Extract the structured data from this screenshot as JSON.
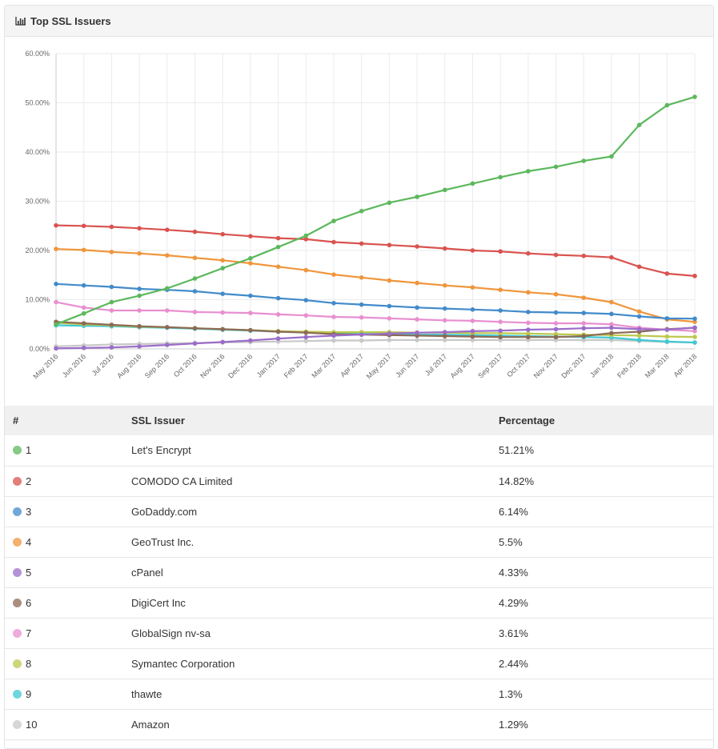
{
  "panel": {
    "title": "Top SSL Issuers",
    "icon": "bar-chart-icon"
  },
  "table": {
    "headers": {
      "rank": "#",
      "issuer": "SSL Issuer",
      "percentage": "Percentage"
    },
    "rows": [
      {
        "rank": "1",
        "issuer": "Let's Encrypt",
        "percentage": "51.21%",
        "color": "#5cb85c",
        "link": false
      },
      {
        "rank": "2",
        "issuer": "COMODO CA Limited",
        "percentage": "14.82%",
        "color": "#d9534f",
        "link": false
      },
      {
        "rank": "3",
        "issuer": "GoDaddy.com",
        "percentage": "6.14%",
        "color": "#428bca",
        "link": true
      },
      {
        "rank": "4",
        "issuer": "GeoTrust Inc.",
        "percentage": "5.5%",
        "color": "#f0953b",
        "link": false
      },
      {
        "rank": "5",
        "issuer": "cPanel",
        "percentage": "4.33%",
        "color": "#9b6dc9",
        "link": false
      },
      {
        "rank": "6",
        "issuer": "DigiCert Inc",
        "percentage": "4.29%",
        "color": "#8c6a55",
        "link": false
      },
      {
        "rank": "7",
        "issuer": "GlobalSign nv-sa",
        "percentage": "3.61%",
        "color": "#e88fd0",
        "link": false
      },
      {
        "rank": "8",
        "issuer": "Symantec Corporation",
        "percentage": "2.44%",
        "color": "#bdc84e",
        "link": false
      },
      {
        "rank": "9",
        "issuer": "thawte",
        "percentage": "1.3%",
        "color": "#3fc8d4",
        "link": false
      },
      {
        "rank": "10",
        "issuer": "Amazon",
        "percentage": "1.29%",
        "color": "#c8c8c8",
        "link": false
      }
    ]
  },
  "chart_data": {
    "type": "line",
    "x": [
      "May 2016",
      "Jun 2016",
      "Jul 2016",
      "Aug 2016",
      "Sep 2016",
      "Oct 2016",
      "Nov 2016",
      "Dec 2016",
      "Jan 2017",
      "Feb 2017",
      "Mar 2017",
      "Apr 2017",
      "May 2017",
      "Jun 2017",
      "Jul 2017",
      "Aug 2017",
      "Sep 2017",
      "Oct 2017",
      "Nov 2017",
      "Dec 2017",
      "Jan 2018",
      "Feb 2018",
      "Mar 2018",
      "Apr 2018"
    ],
    "yticks": [
      "0.00%",
      "10.00%",
      "20.00%",
      "30.00%",
      "40.00%",
      "50.00%",
      "60.00%"
    ],
    "ylim": [
      0,
      60
    ],
    "grid": true,
    "series": [
      {
        "name": "Let's Encrypt",
        "color": "#5cb85c",
        "values": [
          5.0,
          7.2,
          9.5,
          10.8,
          12.3,
          14.3,
          16.4,
          18.4,
          20.7,
          23.0,
          26.0,
          28.0,
          29.7,
          30.9,
          32.3,
          33.6,
          34.9,
          36.1,
          37.0,
          38.2,
          39.1,
          45.5,
          49.5,
          51.21
        ]
      },
      {
        "name": "COMODO CA Limited",
        "color": "#d9534f",
        "values": [
          25.1,
          25.0,
          24.8,
          24.5,
          24.2,
          23.8,
          23.3,
          22.9,
          22.5,
          22.3,
          21.7,
          21.4,
          21.1,
          20.8,
          20.4,
          20.0,
          19.8,
          19.4,
          19.1,
          18.9,
          18.6,
          16.7,
          15.3,
          14.82
        ]
      },
      {
        "name": "GoDaddy.com",
        "color": "#428bca",
        "values": [
          13.2,
          12.9,
          12.6,
          12.2,
          12.0,
          11.7,
          11.2,
          10.8,
          10.3,
          9.9,
          9.3,
          9.0,
          8.7,
          8.4,
          8.2,
          8.0,
          7.8,
          7.5,
          7.4,
          7.3,
          7.1,
          6.6,
          6.2,
          6.14
        ]
      },
      {
        "name": "GeoTrust Inc.",
        "color": "#f0953b",
        "values": [
          20.3,
          20.1,
          19.7,
          19.4,
          19.0,
          18.5,
          18.0,
          17.4,
          16.7,
          16.0,
          15.1,
          14.5,
          13.9,
          13.4,
          12.9,
          12.5,
          12.0,
          11.5,
          11.1,
          10.4,
          9.5,
          7.6,
          6.0,
          5.5
        ]
      },
      {
        "name": "cPanel",
        "color": "#9b6dc9",
        "values": [
          0.1,
          0.2,
          0.3,
          0.5,
          0.8,
          1.1,
          1.4,
          1.7,
          2.1,
          2.4,
          2.7,
          2.9,
          3.1,
          3.3,
          3.4,
          3.6,
          3.7,
          3.9,
          4.0,
          4.2,
          4.3,
          4.0,
          3.9,
          4.33
        ]
      },
      {
        "name": "DigiCert Inc",
        "color": "#8c6a55",
        "values": [
          5.5,
          5.2,
          4.9,
          4.6,
          4.4,
          4.2,
          4.0,
          3.8,
          3.5,
          3.3,
          3.0,
          2.9,
          2.8,
          2.7,
          2.6,
          2.5,
          2.4,
          2.4,
          2.4,
          2.6,
          3.2,
          3.5,
          4.0,
          4.29
        ]
      },
      {
        "name": "GlobalSign nv-sa",
        "color": "#e88fd0",
        "values": [
          9.5,
          8.4,
          7.8,
          7.8,
          7.8,
          7.5,
          7.4,
          7.3,
          7.0,
          6.8,
          6.5,
          6.4,
          6.2,
          6.0,
          5.8,
          5.7,
          5.5,
          5.3,
          5.2,
          5.2,
          5.0,
          4.3,
          3.9,
          3.61
        ]
      },
      {
        "name": "Symantec Corporation",
        "color": "#bdc84e",
        "values": [
          5.3,
          5.0,
          4.8,
          4.5,
          4.4,
          4.2,
          4.0,
          3.8,
          3.6,
          3.5,
          3.4,
          3.4,
          3.4,
          3.3,
          3.3,
          3.2,
          3.2,
          3.1,
          3.0,
          2.9,
          2.8,
          2.7,
          2.5,
          2.44
        ]
      },
      {
        "name": "thawte",
        "color": "#3fc8d4",
        "values": [
          4.8,
          4.7,
          4.6,
          4.4,
          4.3,
          4.1,
          3.9,
          3.7,
          3.5,
          3.4,
          3.2,
          3.1,
          3.0,
          2.9,
          2.9,
          2.8,
          2.7,
          2.6,
          2.5,
          2.4,
          2.3,
          1.8,
          1.5,
          1.3
        ]
      },
      {
        "name": "Amazon",
        "color": "#c8c8c8",
        "values": [
          0.5,
          0.7,
          0.9,
          1.0,
          1.1,
          1.2,
          1.3,
          1.4,
          1.5,
          1.6,
          1.7,
          1.7,
          1.8,
          1.8,
          1.8,
          1.8,
          1.8,
          1.8,
          1.8,
          1.8,
          1.8,
          1.6,
          1.4,
          1.29
        ]
      }
    ]
  }
}
